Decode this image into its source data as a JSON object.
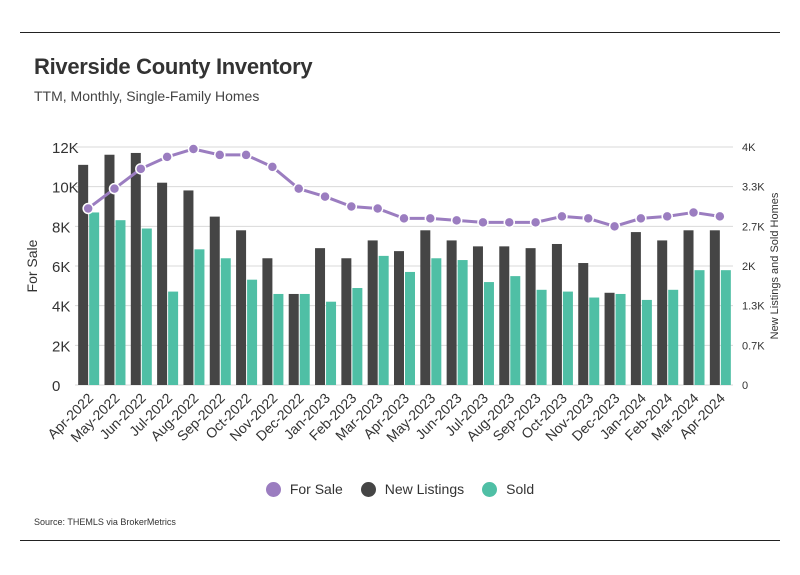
{
  "title": "Riverside County Inventory",
  "subtitle": "TTM, Monthly, Single-Family Homes",
  "source": "Source:  THEMLS via BrokerMetrics",
  "colors": {
    "for_sale": "#9b7dc0",
    "new_listings": "#454545",
    "sold": "#4fbfa5",
    "grid": "#d9d9d9"
  },
  "legend": [
    {
      "label": "For Sale",
      "color": "#9b7dc0"
    },
    {
      "label": "New Listings",
      "color": "#454545"
    },
    {
      "label": "Sold",
      "color": "#4fbfa5"
    }
  ],
  "chart_data": {
    "type": "bar",
    "categories": [
      "Apr-2022",
      "May-2022",
      "Jun-2022",
      "Jul-2022",
      "Aug-2022",
      "Sep-2022",
      "Oct-2022",
      "Nov-2022",
      "Dec-2022",
      "Jan-2023",
      "Feb-2023",
      "Mar-2023",
      "Apr-2023",
      "May-2023",
      "Jun-2023",
      "Jul-2023",
      "Aug-2023",
      "Sep-2023",
      "Oct-2023",
      "Nov-2023",
      "Dec-2023",
      "Jan-2024",
      "Feb-2024",
      "Mar-2024",
      "Apr-2024"
    ],
    "ylabel": "For Sale",
    "y2label": "New Listings and Sold Homes",
    "ylim": [
      0,
      12000
    ],
    "y2lim": [
      0,
      4000
    ],
    "y_ticks": [
      0,
      2000,
      4000,
      6000,
      8000,
      10000,
      12000
    ],
    "y_tick_labels": [
      "0",
      "2K",
      "4K",
      "6K",
      "8K",
      "10K",
      "12K"
    ],
    "y2_ticks": [
      0,
      667,
      1333,
      2000,
      2667,
      3333,
      4000
    ],
    "y2_tick_labels": [
      "0",
      "0.7K",
      "1.3K",
      "2K",
      "2.7K",
      "3.3K",
      "4K"
    ],
    "grid": true,
    "legend_position": "bottom",
    "series": [
      {
        "name": "For Sale",
        "type": "line",
        "axis": "left",
        "values": [
          8900,
          9900,
          10900,
          11500,
          11900,
          11600,
          11600,
          11000,
          9900,
          9500,
          9000,
          8900,
          8400,
          8400,
          8300,
          8200,
          8200,
          8200,
          8500,
          8400,
          8000,
          8400,
          8500,
          8700,
          8500
        ]
      },
      {
        "name": "New Listings",
        "type": "bar",
        "axis": "right",
        "values": [
          3700,
          3870,
          3900,
          3400,
          3270,
          2830,
          2600,
          2130,
          1530,
          2300,
          2130,
          2430,
          2250,
          2600,
          2430,
          2330,
          2330,
          2300,
          2370,
          2050,
          1550,
          2570,
          2430,
          2600,
          2600
        ]
      },
      {
        "name": "Sold",
        "type": "bar",
        "axis": "right",
        "values": [
          2900,
          2770,
          2630,
          1570,
          2280,
          2130,
          1770,
          1530,
          1530,
          1400,
          1630,
          2170,
          1900,
          2130,
          2100,
          1730,
          1830,
          1600,
          1570,
          1470,
          1530,
          1430,
          1600,
          1930,
          1930
        ]
      }
    ]
  }
}
